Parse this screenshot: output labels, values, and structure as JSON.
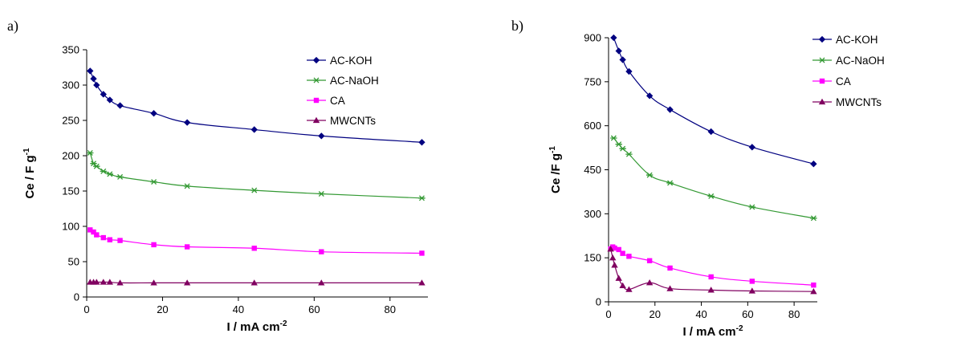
{
  "chart_data": [
    {
      "type": "line",
      "panel_label": "a)",
      "xlabel": "I / mA cm",
      "xlabel_sup": "-2",
      "ylabel": "Ce / F g",
      "ylabel_sup": "-1",
      "xlim": [
        0,
        90
      ],
      "ylim": [
        0,
        350
      ],
      "xticks": [
        0,
        20,
        40,
        60,
        80
      ],
      "yticks": [
        0,
        50,
        100,
        150,
        200,
        250,
        300,
        350
      ],
      "grid": false,
      "legend": "top-right",
      "series": [
        {
          "name": "AC-KOH",
          "color": "#000080",
          "marker": "diamond",
          "x": [
            0.9,
            1.8,
            2.6,
            4.4,
            6.1,
            8.8,
            17.7,
            26.5,
            44.2,
            61.9,
            88.4
          ],
          "y": [
            320,
            309,
            300,
            287,
            279,
            271,
            260,
            247,
            237,
            228,
            219
          ]
        },
        {
          "name": "AC-NaOH",
          "color": "#339933",
          "marker": "asterisk",
          "x": [
            0.9,
            1.8,
            2.6,
            4.4,
            6.1,
            8.8,
            17.7,
            26.5,
            44.2,
            61.9,
            88.4
          ],
          "y": [
            204,
            189,
            185,
            178,
            174,
            170,
            163,
            157,
            151,
            146,
            140
          ]
        },
        {
          "name": "CA",
          "color": "#ff00ff",
          "marker": "square",
          "x": [
            0.9,
            1.8,
            2.6,
            4.4,
            6.1,
            8.8,
            17.7,
            26.5,
            44.2,
            61.9,
            88.4
          ],
          "y": [
            95,
            92,
            88,
            84,
            81,
            80,
            74,
            71,
            69,
            64,
            62
          ]
        },
        {
          "name": "MWCNTs",
          "color": "#800060",
          "marker": "triangle",
          "x": [
            0.9,
            1.8,
            2.6,
            4.4,
            6.1,
            8.8,
            17.7,
            26.5,
            44.2,
            61.9,
            88.4
          ],
          "y": [
            21,
            21,
            21,
            21,
            21,
            20,
            20,
            20,
            20,
            20,
            20
          ]
        }
      ]
    },
    {
      "type": "line",
      "panel_label": "b)",
      "xlabel": "I / mA cm",
      "xlabel_sup": "-2",
      "ylabel": "Ce /F g",
      "ylabel_sup": "-1",
      "xlim": [
        0,
        90
      ],
      "ylim": [
        0,
        900
      ],
      "xticks": [
        0,
        20,
        40,
        60,
        80
      ],
      "yticks": [
        0,
        150,
        300,
        450,
        600,
        750,
        900
      ],
      "grid": false,
      "legend": "top-right",
      "series": [
        {
          "name": "AC-KOH",
          "color": "#000080",
          "marker": "diamond",
          "x": [
            2.2,
            4.4,
            6.1,
            8.8,
            17.7,
            26.5,
            44.2,
            61.9,
            88.4
          ],
          "y": [
            900,
            855,
            825,
            785,
            702,
            655,
            580,
            527,
            470
          ]
        },
        {
          "name": "AC-NaOH",
          "color": "#339933",
          "marker": "asterisk",
          "x": [
            2.2,
            4.4,
            6.1,
            8.8,
            17.7,
            26.5,
            44.2,
            61.9,
            88.4
          ],
          "y": [
            558,
            537,
            522,
            503,
            432,
            405,
            360,
            323,
            285
          ]
        },
        {
          "name": "CA",
          "color": "#ff00ff",
          "marker": "square",
          "x": [
            0.9,
            1.8,
            2.6,
            4.4,
            6.1,
            8.8,
            17.7,
            26.5,
            44.2,
            61.9,
            88.4
          ],
          "y": [
            180,
            187,
            183,
            178,
            165,
            155,
            140,
            115,
            85,
            70,
            57
          ]
        },
        {
          "name": "MWCNTs",
          "color": "#800060",
          "marker": "triangle",
          "x": [
            0.9,
            1.8,
            2.6,
            4.4,
            6.1,
            8.8,
            17.7,
            26.5,
            44.2,
            61.9,
            88.4
          ],
          "y": [
            180,
            150,
            125,
            80,
            55,
            42,
            65,
            45,
            40,
            37,
            35
          ]
        }
      ]
    }
  ]
}
